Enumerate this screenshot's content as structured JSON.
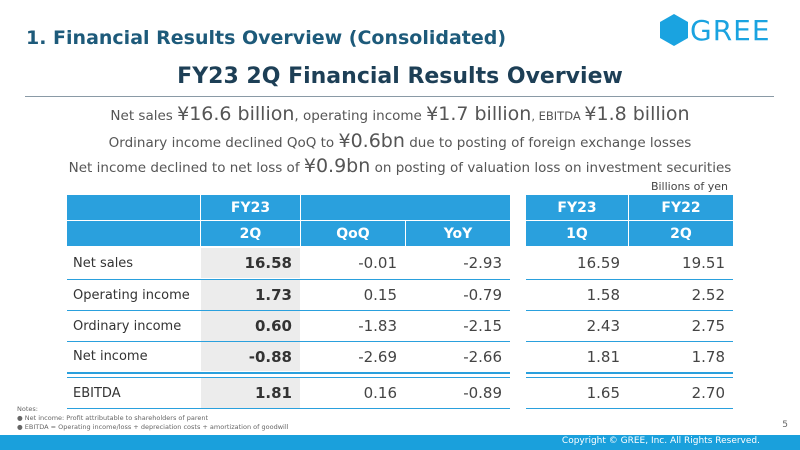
{
  "header": {
    "section_title": "1. Financial Results Overview (Consolidated)",
    "logo_text": "GREE",
    "main_title": "FY23 2Q Financial Results Overview",
    "brand_color": "#1aa0dc"
  },
  "summary": {
    "line1": {
      "p1": "Net sales ",
      "b1": "¥16.6 billion",
      "p2": ", operating income ",
      "b2": "¥1.7 billion",
      "p3": ", EBITDA ",
      "b3": "¥1.8 billion"
    },
    "line2": {
      "p1": "Ordinary income declined QoQ to ",
      "b1": "¥0.6bn",
      "p2": " due to posting of foreign exchange losses"
    },
    "line3": {
      "p1": "Net income declined to net loss of ",
      "b1": "¥0.9bn",
      "p2": " on posting of valuation loss on investment securities"
    }
  },
  "unit_label": "Billions of yen",
  "table": {
    "header_top": {
      "fy23": "FY23",
      "fy23b": "FY23",
      "fy22": "FY22"
    },
    "header_sub": {
      "q2": "2Q",
      "qoq": "QoQ",
      "yoy": "YoY",
      "q1": "1Q",
      "q2b": "2Q"
    },
    "rows": [
      {
        "label": "Net sales",
        "q2": "16.58",
        "qoq": "-0.01",
        "yoy": "-2.93",
        "q1": "16.59",
        "fy22q2": "19.51"
      },
      {
        "label": "Operating income",
        "q2": "1.73",
        "qoq": "0.15",
        "yoy": "-0.79",
        "q1": "1.58",
        "fy22q2": "2.52"
      },
      {
        "label": "Ordinary income",
        "q2": "0.60",
        "qoq": "-1.83",
        "yoy": "-2.15",
        "q1": "2.43",
        "fy22q2": "2.75"
      },
      {
        "label": "Net income",
        "q2": "-0.88",
        "qoq": "-2.69",
        "yoy": "-2.66",
        "q1": "1.81",
        "fy22q2": "1.78"
      }
    ],
    "ebitda": {
      "label": "EBITDA",
      "q2": "1.81",
      "qoq": "0.16",
      "yoy": "-0.89",
      "q1": "1.65",
      "fy22q2": "2.70"
    }
  },
  "notes": {
    "title": "Notes:",
    "n1": "Net income: Profit attributable to shareholders of parent",
    "n2": "EBITDA = Operating income/loss + depreciation costs + amortization of goodwill"
  },
  "page_number": "5",
  "copyright": "Copyright © GREE, Inc. All Rights Reserved."
}
